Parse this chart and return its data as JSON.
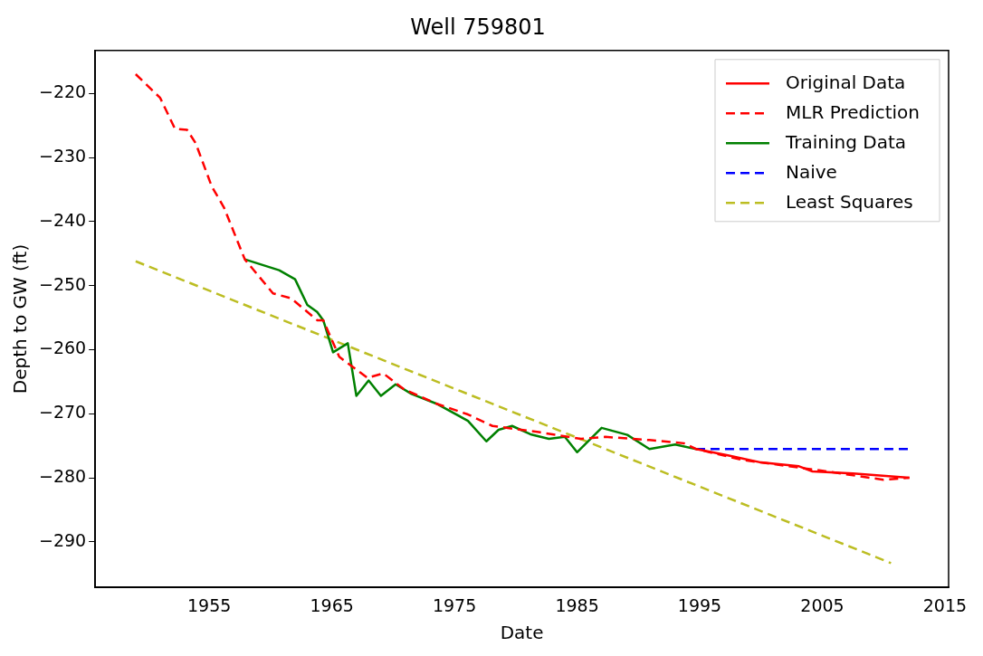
{
  "chart_data": {
    "type": "line",
    "title": "Well 759801",
    "xlabel": "Date",
    "ylabel": "Depth to GW (ft)",
    "xlim": [
      1945.7,
      2015.3
    ],
    "ylim": [
      -297.1,
      -213.3
    ],
    "xticks": [
      1955,
      1965,
      1975,
      1985,
      1995,
      2005,
      2015
    ],
    "yticks": [
      {
        "value": -290,
        "label": "−290"
      },
      {
        "value": -280,
        "label": "−280"
      },
      {
        "value": -270,
        "label": "−270"
      },
      {
        "value": -260,
        "label": "−260"
      },
      {
        "value": -250,
        "label": "−250"
      },
      {
        "value": -240,
        "label": "−240"
      },
      {
        "value": -230,
        "label": "−230"
      },
      {
        "value": -220,
        "label": "−220"
      }
    ],
    "grid": false,
    "legend": "top right",
    "marker": "none",
    "series": [
      {
        "name": "Original Data",
        "color": "#ff0000",
        "line_style": "solid",
        "x": [
          1994.7,
          1997.3,
          2000,
          2003.1,
          2004.2,
          2007.5,
          2012.1
        ],
        "values": [
          -275.5,
          -276.5,
          -277.6,
          -278.2,
          -279.0,
          -279.3,
          -280.0
        ]
      },
      {
        "name": "MLR Prediction",
        "color": "#ff0000",
        "line_style": "dashed",
        "x": [
          1949,
          1951,
          1952.2,
          1953.2,
          1953.9,
          1955.2,
          1956.2,
          1957.9,
          1960.2,
          1961.7,
          1963.8,
          1964.3,
          1965.6,
          1967.9,
          1969.2,
          1970.9,
          1973.5,
          1976.1,
          1978.1,
          1982,
          1985.3,
          1987.3,
          1990.9,
          1993.7,
          1994.7,
          1998.5,
          2000,
          2005,
          2010,
          2012.1
        ],
        "values": [
          -217.0,
          -220.7,
          -225.5,
          -225.7,
          -227.8,
          -234.5,
          -237.8,
          -245.9,
          -251.2,
          -252.0,
          -255.4,
          -255.4,
          -261.1,
          -264.4,
          -263.7,
          -266.2,
          -268.4,
          -270.1,
          -271.9,
          -272.9,
          -273.9,
          -273.6,
          -274.1,
          -274.6,
          -275.5,
          -277.2,
          -277.6,
          -278.9,
          -280.3,
          -280.0
        ]
      },
      {
        "name": "Training Data",
        "color": "#008000",
        "line_style": "solid",
        "x": [
          1957.9,
          1960.7,
          1962,
          1963,
          1963.8,
          1964.3,
          1965.1,
          1966.3,
          1967,
          1968,
          1969,
          1970.2,
          1971.5,
          1973.5,
          1976.1,
          1977.6,
          1978.6,
          1979.7,
          1981.2,
          1982.7,
          1984,
          1985,
          1987,
          1989.1,
          1990.9,
          1993,
          1994.7
        ],
        "values": [
          -245.9,
          -247.6,
          -249.0,
          -253.0,
          -254.1,
          -255.4,
          -260.4,
          -259.0,
          -267.2,
          -264.8,
          -267.2,
          -265.4,
          -266.9,
          -268.4,
          -271.1,
          -274.3,
          -272.5,
          -271.9,
          -273.2,
          -273.9,
          -273.6,
          -276.0,
          -272.2,
          -273.3,
          -275.5,
          -274.8,
          -275.5
        ]
      },
      {
        "name": "Naive",
        "color": "#0000ff",
        "line_style": "dashed",
        "x": [
          1994.7,
          2012.2
        ],
        "values": [
          -275.5,
          -275.5
        ]
      },
      {
        "name": "Least Squares",
        "color": "#bcbd22",
        "line_style": "dashed",
        "x": [
          1949,
          2010.6
        ],
        "values": [
          -246.2,
          -293.3
        ]
      }
    ]
  }
}
